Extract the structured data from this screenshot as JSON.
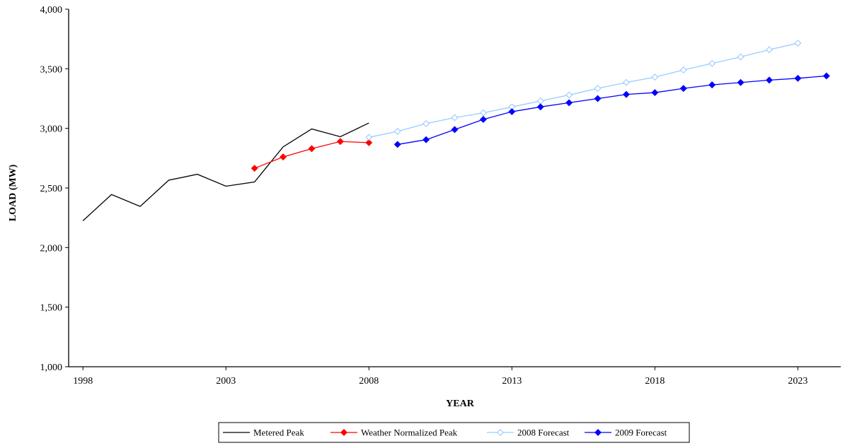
{
  "chart_data": {
    "type": "line",
    "title": "",
    "xlabel": "YEAR",
    "ylabel": "LOAD (MW)",
    "xlim": [
      1997.5,
      2024.5
    ],
    "ylim": [
      1000,
      4000
    ],
    "x_ticks": [
      1998,
      2003,
      2008,
      2013,
      2018,
      2023
    ],
    "y_ticks": [
      1000,
      1500,
      2000,
      2500,
      3000,
      3500,
      4000
    ],
    "y_tick_labels": [
      "1,000",
      "1,500",
      "2,000",
      "2,500",
      "3,000",
      "3,500",
      "4,000"
    ],
    "grid": false,
    "legend_position": "bottom",
    "series": [
      {
        "name": "Metered Peak",
        "color": "#000000",
        "marker": "none",
        "x": [
          1998,
          1999,
          2000,
          2001,
          2002,
          2003,
          2004,
          2005,
          2006,
          2007,
          2008
        ],
        "y": [
          2225,
          2445,
          2345,
          2565,
          2615,
          2515,
          2550,
          2845,
          2995,
          2930,
          3045
        ]
      },
      {
        "name": "Weather Normalized Peak",
        "color": "#ff0000",
        "marker": "diamond-filled",
        "x": [
          2004,
          2005,
          2006,
          2007,
          2008
        ],
        "y": [
          2665,
          2760,
          2830,
          2890,
          2880
        ]
      },
      {
        "name": "2008 Forecast",
        "color": "#99ccff",
        "marker": "diamond-open",
        "x": [
          2008,
          2009,
          2010,
          2011,
          2012,
          2013,
          2014,
          2015,
          2016,
          2017,
          2018,
          2019,
          2020,
          2021,
          2022,
          2023
        ],
        "y": [
          2925,
          2975,
          3040,
          3090,
          3130,
          3180,
          3230,
          3280,
          3335,
          3385,
          3430,
          3490,
          3545,
          3600,
          3660,
          3715
        ]
      },
      {
        "name": "2009 Forecast",
        "color": "#0000ff",
        "marker": "diamond-filled",
        "x": [
          2009,
          2010,
          2011,
          2012,
          2013,
          2014,
          2015,
          2016,
          2017,
          2018,
          2019,
          2020,
          2021,
          2022,
          2023,
          2024
        ],
        "y": [
          2865,
          2905,
          2990,
          3075,
          3140,
          3180,
          3215,
          3250,
          3285,
          3300,
          3335,
          3365,
          3385,
          3405,
          3420,
          3440
        ]
      }
    ]
  }
}
